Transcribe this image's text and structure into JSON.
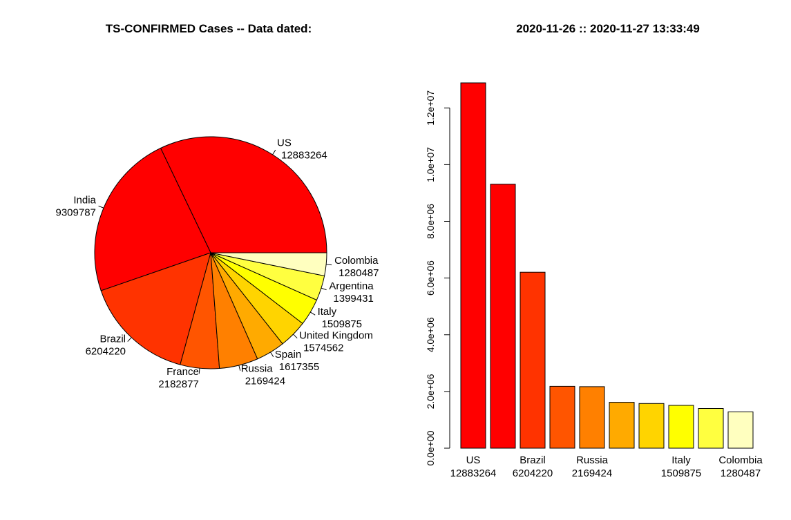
{
  "titles": {
    "left": "TS-CONFIRMED Cases  -- Data dated:",
    "right": "2020-11-26  ::  2020-11-27 13:33:49"
  },
  "chart_data": [
    {
      "type": "pie",
      "categories": [
        "US",
        "India",
        "Brazil",
        "France",
        "Russia",
        "Spain",
        "United Kingdom",
        "Italy",
        "Argentina",
        "Colombia"
      ],
      "values": [
        12883264,
        9309787,
        6204220,
        2182877,
        2169424,
        1617355,
        1574562,
        1509875,
        1399431,
        1280487
      ],
      "value_labels": [
        "12883264",
        "9309787",
        "6204220",
        "2182877",
        "2169424",
        "1617355",
        "1574562",
        "1509875",
        "1399431",
        "1280487"
      ],
      "colors": [
        "#FF0000",
        "#FF0000",
        "#FF3300",
        "#FF5500",
        "#FF8000",
        "#FFAA00",
        "#FFD400",
        "#FFFF00",
        "#FFFF40",
        "#FFFFBF"
      ],
      "start": "3 o'clock, counter-clockwise"
    },
    {
      "type": "bar",
      "categories": [
        "US",
        "India",
        "Brazil",
        "France",
        "Russia",
        "Spain",
        "United Kingdom",
        "Italy",
        "Argentina",
        "Colombia"
      ],
      "values": [
        12883264,
        9309787,
        6204220,
        2182877,
        2169424,
        1617355,
        1574562,
        1509875,
        1399431,
        1280487
      ],
      "xtick_names": [
        "US",
        "Brazil",
        "Russia",
        "Italy",
        "Colombia"
      ],
      "xtick_values": [
        "12883264",
        "6204220",
        "2169424",
        "1509875",
        "1280487"
      ],
      "yticks": [
        0,
        2000000,
        4000000,
        6000000,
        8000000,
        10000000,
        12000000
      ],
      "ytick_labels": [
        "0.0e+00",
        "2.0e+06",
        "4.0e+06",
        "6.0e+06",
        "8.0e+06",
        "1.0e+07",
        "1.2e+07"
      ],
      "ylim": [
        0,
        12883264
      ]
    }
  ]
}
